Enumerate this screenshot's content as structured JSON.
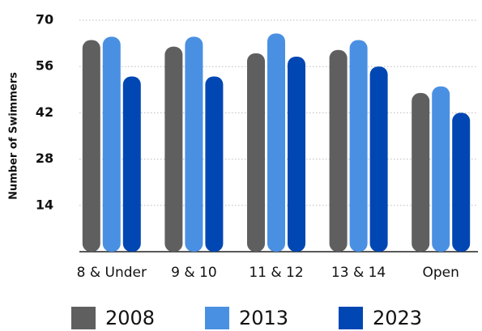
{
  "chart_data": {
    "type": "bar",
    "y_label": "Number of Swimmers",
    "categories": [
      "8 & Under",
      "9 & 10",
      "11 & 12",
      "13 & 14",
      "Open"
    ],
    "series": [
      {
        "name": "2008",
        "color": "#5f5f5f",
        "values": [
          64,
          62,
          60,
          61,
          48
        ]
      },
      {
        "name": "2013",
        "color": "#4a90e2",
        "values": [
          65,
          65,
          66,
          64,
          50
        ]
      },
      {
        "name": "2023",
        "color": "#0047b3",
        "values": [
          53,
          53,
          59,
          56,
          42
        ]
      }
    ],
    "ylim": [
      0,
      70
    ],
    "yticks": [
      14,
      28,
      42,
      56,
      70
    ],
    "grid": true
  }
}
